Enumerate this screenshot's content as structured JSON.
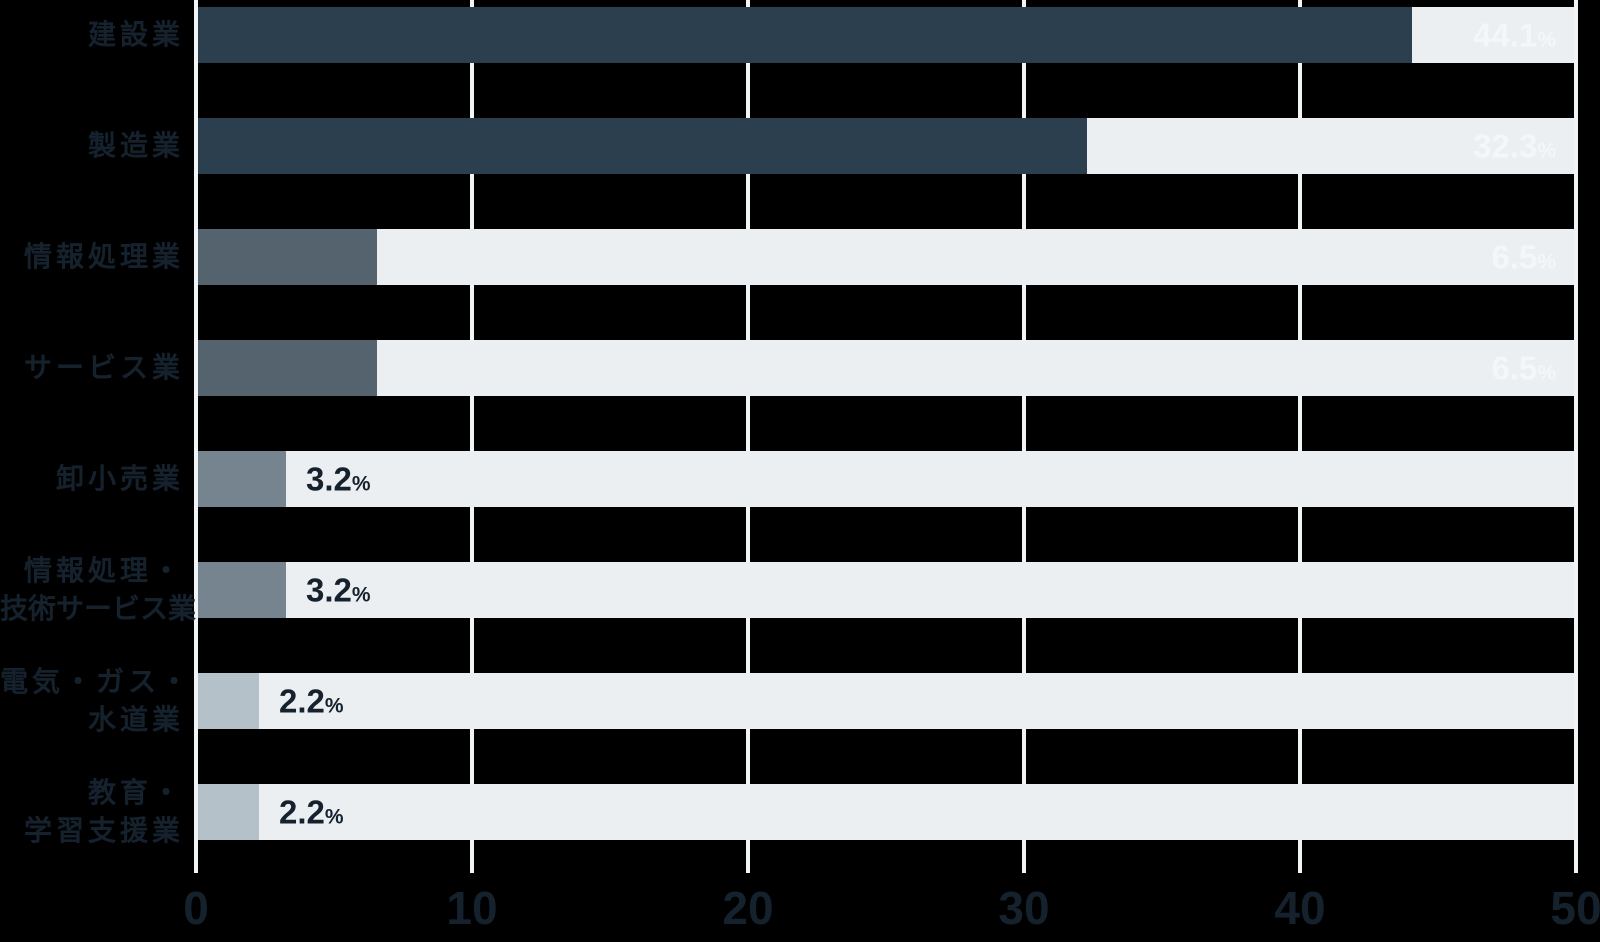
{
  "chart_data": {
    "type": "bar",
    "orientation": "horizontal",
    "title": "",
    "xlabel": "",
    "ylabel": "",
    "unit": "%",
    "xlim": [
      0,
      50
    ],
    "x_ticks": [
      "0",
      "10",
      "20",
      "30",
      "40",
      "50"
    ],
    "grid": "vertical white gridlines on black background, light track to 50 behind each bar",
    "legend_position": "none",
    "categories": [
      "建設業",
      "製造業",
      "情報処理業",
      "サービス業",
      "卸小売業",
      "情報処理・技術サービス業",
      "電気・ガス・水道業",
      "教育・学習支援業"
    ],
    "values": [
      44.1,
      32.3,
      6.5,
      6.5,
      3.2,
      3.2,
      2.2,
      2.2
    ]
  },
  "rows": [
    {
      "label_lines": [
        "建設業"
      ],
      "value": 44.1,
      "value_display": "44.1",
      "tier": "dark"
    },
    {
      "label_lines": [
        "製造業"
      ],
      "value": 32.3,
      "value_display": "32.3",
      "tier": "dark"
    },
    {
      "label_lines": [
        "情報処理業"
      ],
      "value": 6.5,
      "value_display": "6.5",
      "tier": "mid"
    },
    {
      "label_lines": [
        "サービス業"
      ],
      "value": 6.5,
      "value_display": "6.5",
      "tier": "mid"
    },
    {
      "label_lines": [
        "卸小売業"
      ],
      "value": 3.2,
      "value_display": "3.2",
      "tier": "gray"
    },
    {
      "label_lines": [
        "情報処理・",
        "技術サービス業"
      ],
      "value": 3.2,
      "value_display": "3.2",
      "tier": "gray"
    },
    {
      "label_lines": [
        "電気・ガス・",
        "水道業"
      ],
      "value": 2.2,
      "value_display": "2.2",
      "tier": "light"
    },
    {
      "label_lines": [
        "教育・",
        "学習支援業"
      ],
      "value": 2.2,
      "value_display": "2.2",
      "tier": "light"
    }
  ],
  "colors": {
    "background": "#000000",
    "track": "#ebeff2",
    "gridline": "#f2f5f6",
    "bar_dark": "#2b3f4e",
    "bar_mid": "#54636e",
    "bar_gray": "#76848f",
    "bar_light": "#b4c1c9",
    "text_dark": "#15222e",
    "text_light": "#f4f6f7"
  }
}
